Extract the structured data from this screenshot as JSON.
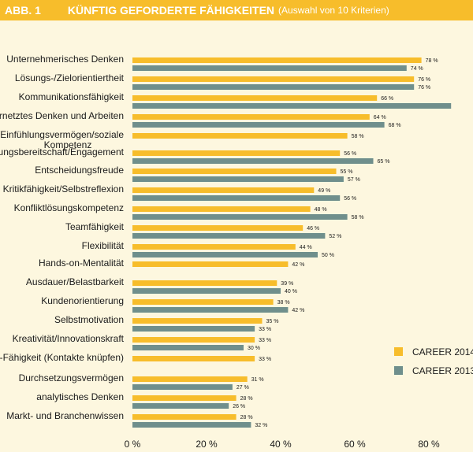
{
  "header": {
    "abb": "ABB. 1",
    "title": "KÜNFTIG GEFORDERTE FÄHIGKEITEN",
    "subtitle": "(Auswahl von 10 Kriterien)"
  },
  "colors": {
    "header_bg": "#f7bd2b",
    "career2014": "#f7bd2b",
    "career2013": "#6f8f8c",
    "background": "#fdf7df"
  },
  "chart_data": {
    "type": "bar",
    "orientation": "horizontal",
    "xlim": [
      0,
      90
    ],
    "xticks": [
      0,
      20,
      40,
      60,
      80
    ],
    "xtick_labels": [
      "0 %",
      "20 %",
      "40 %",
      "60 %",
      "80 %"
    ],
    "categories": [
      [
        "Unternehmerisches Denken"
      ],
      [
        "Lösungs-/Zielorientiertheit"
      ],
      [
        "Kommunikationsfähigkeit"
      ],
      [
        "ernetztes Denken und Arbeiten"
      ],
      [
        "e/Einfühlungsvermögen/soziale",
        "Kompetenz"
      ],
      [
        "tungsbereitschaft/Engagement"
      ],
      [
        "Entscheidungsfreude"
      ],
      [
        "Kritikfähigkeit/Selbstreflexion"
      ],
      [
        "Konfliktlösungskompetenz"
      ],
      [
        "Teamfähigkeit"
      ],
      [
        "Flexibilität"
      ],
      [
        "Hands-on-Mentalität"
      ],
      [
        "Ausdauer/Belastbarkeit"
      ],
      [
        "Kundenorientierung"
      ],
      [
        "Selbstmotivation"
      ],
      [
        "Kreativität/Innovationskraft"
      ],
      [
        "g-Fähigkeit (Kontakte knüpfen)"
      ],
      [
        "Durchsetzungsvermögen"
      ],
      [
        "analytisches Denken"
      ],
      [
        "Markt- und Branchenwissen"
      ]
    ],
    "series": [
      {
        "name": "CAREER 2014",
        "color": "#f7bd2b",
        "values": [
          78,
          76,
          66,
          64,
          58,
          56,
          55,
          49,
          48,
          46,
          44,
          42,
          39,
          38,
          35,
          33,
          33,
          31,
          28,
          28
        ],
        "labels": [
          "78 %",
          "76 %",
          "66 %",
          "64 %",
          "58 %",
          "56 %",
          "55 %",
          "49 %",
          "48 %",
          "46 %",
          "44 %",
          "42 %",
          "39 %",
          "38 %",
          "35 %",
          "33 %",
          "33 %",
          "31 %",
          "28 %",
          "28 %"
        ]
      },
      {
        "name": "CAREER 2013",
        "color": "#6f8f8c",
        "values": [
          74,
          76,
          86,
          68,
          null,
          65,
          57,
          56,
          58,
          52,
          50,
          null,
          40,
          42,
          33,
          30,
          null,
          27,
          26,
          32
        ],
        "labels": [
          "74 %",
          "76 %",
          "",
          "68 %",
          "",
          "65 %",
          "57 %",
          "56 %",
          "58 %",
          "52 %",
          "50 %",
          "",
          "40 %",
          "42 %",
          "33 %",
          "30 %",
          "",
          "27 %",
          "26 %",
          "32 %"
        ]
      }
    ],
    "legend": [
      "CAREER 2014",
      "CAREER 2013"
    ],
    "legend_position": "right",
    "grid": false
  }
}
